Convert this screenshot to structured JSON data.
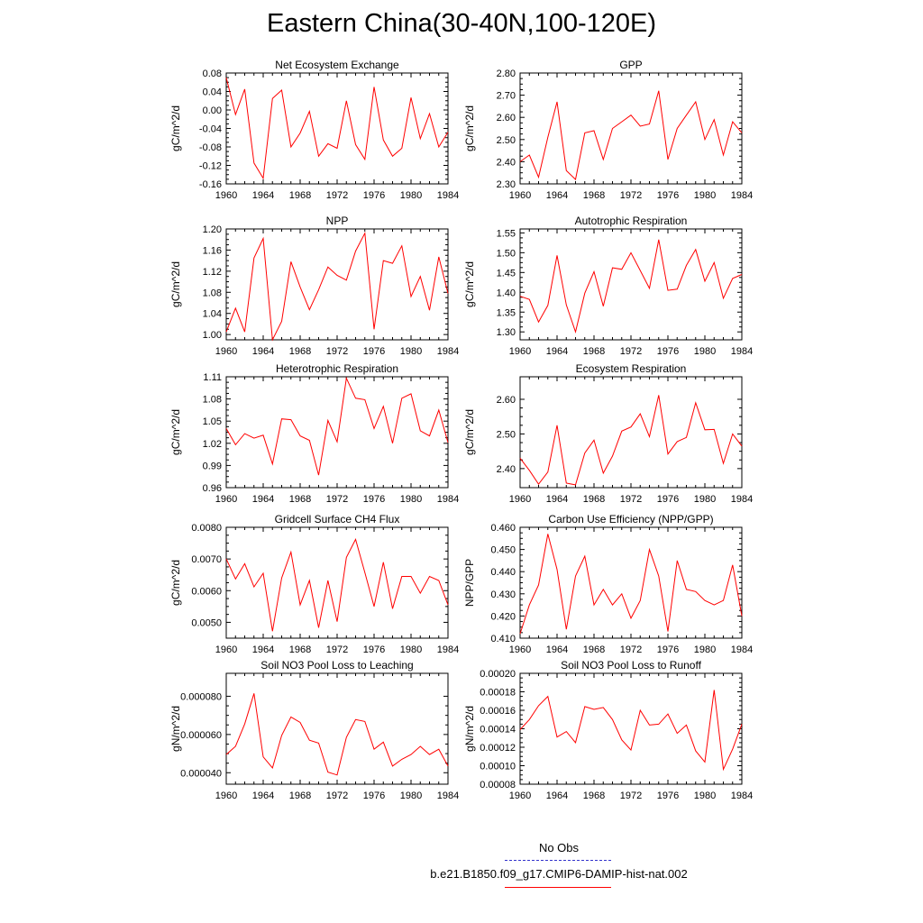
{
  "title": "Eastern China(30-40N,100-120E)",
  "legend": {
    "entries": [
      {
        "label": "No Obs",
        "color": "#3333cc",
        "style": "dashed"
      },
      {
        "label": "b.e21.B1850.f09_g17.CMIP6-DAMIP-hist-nat.002",
        "color": "#ff0000",
        "style": "solid"
      }
    ]
  },
  "chart_data": [
    {
      "type": "line",
      "title": "Net Ecosystem Exchange",
      "ylabel": "gC/m^2/d",
      "xlim": [
        1960,
        1984
      ],
      "ylim": [
        -0.16,
        0.08
      ],
      "xticks": [
        1960,
        1964,
        1968,
        1972,
        1976,
        1980,
        1984
      ],
      "yticks": [
        -0.16,
        -0.12,
        -0.08,
        -0.04,
        0.0,
        0.04,
        0.08
      ],
      "ytick_labels": [
        "-0.16",
        "-0.12",
        "-0.08",
        "-0.04",
        "0.00",
        "0.04",
        "0.08"
      ],
      "x": [
        1960,
        1961,
        1962,
        1963,
        1964,
        1965,
        1966,
        1967,
        1968,
        1969,
        1970,
        1971,
        1972,
        1973,
        1974,
        1975,
        1976,
        1977,
        1978,
        1979,
        1980,
        1981,
        1982,
        1983,
        1984
      ],
      "series": [
        {
          "color": "#ff0000",
          "values": [
            0.07,
            -0.01,
            0.045,
            -0.115,
            -0.148,
            0.025,
            0.043,
            -0.08,
            -0.05,
            -0.003,
            -0.1,
            -0.073,
            -0.083,
            0.02,
            -0.075,
            -0.107,
            0.05,
            -0.065,
            -0.1,
            -0.083,
            0.027,
            -0.062,
            -0.008,
            -0.08,
            -0.048
          ]
        }
      ]
    },
    {
      "type": "line",
      "title": "GPP",
      "ylabel": "gC/m^2/d",
      "xlim": [
        1960,
        1984
      ],
      "ylim": [
        2.3,
        2.8
      ],
      "xticks": [
        1960,
        1964,
        1968,
        1972,
        1976,
        1980,
        1984
      ],
      "yticks": [
        2.3,
        2.4,
        2.5,
        2.6,
        2.7,
        2.8
      ],
      "ytick_labels": [
        "2.30",
        "2.40",
        "2.50",
        "2.60",
        "2.70",
        "2.80"
      ],
      "x": [
        1960,
        1961,
        1962,
        1963,
        1964,
        1965,
        1966,
        1967,
        1968,
        1969,
        1970,
        1971,
        1972,
        1973,
        1974,
        1975,
        1976,
        1977,
        1978,
        1979,
        1980,
        1981,
        1982,
        1983,
        1984
      ],
      "series": [
        {
          "color": "#ff0000",
          "values": [
            2.4,
            2.43,
            2.33,
            2.51,
            2.67,
            2.36,
            2.32,
            2.53,
            2.54,
            2.41,
            2.55,
            2.58,
            2.61,
            2.56,
            2.57,
            2.72,
            2.41,
            2.55,
            2.61,
            2.67,
            2.5,
            2.59,
            2.43,
            2.58,
            2.53
          ]
        }
      ]
    },
    {
      "type": "line",
      "title": "NPP",
      "ylabel": "gC/m^2/d",
      "xlim": [
        1960,
        1984
      ],
      "ylim": [
        0.99,
        1.2
      ],
      "xticks": [
        1960,
        1964,
        1968,
        1972,
        1976,
        1980,
        1984
      ],
      "yticks": [
        1.0,
        1.04,
        1.08,
        1.12,
        1.16,
        1.2
      ],
      "ytick_labels": [
        "1.00",
        "1.04",
        "1.08",
        "1.12",
        "1.16",
        "1.20"
      ],
      "x": [
        1960,
        1961,
        1962,
        1963,
        1964,
        1965,
        1966,
        1967,
        1968,
        1969,
        1970,
        1971,
        1972,
        1973,
        1974,
        1975,
        1976,
        1977,
        1978,
        1979,
        1980,
        1981,
        1982,
        1983,
        1984
      ],
      "series": [
        {
          "color": "#ff0000",
          "values": [
            1.005,
            1.05,
            1.005,
            1.145,
            1.182,
            0.99,
            1.025,
            1.138,
            1.09,
            1.047,
            1.085,
            1.128,
            1.112,
            1.103,
            1.158,
            1.192,
            1.01,
            1.14,
            1.135,
            1.168,
            1.072,
            1.11,
            1.046,
            1.147,
            1.078
          ]
        }
      ]
    },
    {
      "type": "line",
      "title": "Autotrophic Respiration",
      "ylabel": "gC/m^2/d",
      "xlim": [
        1960,
        1984
      ],
      "ylim": [
        1.28,
        1.56
      ],
      "xticks": [
        1960,
        1964,
        1968,
        1972,
        1976,
        1980,
        1984
      ],
      "yticks": [
        1.3,
        1.35,
        1.4,
        1.45,
        1.5,
        1.55
      ],
      "ytick_labels": [
        "1.30",
        "1.35",
        "1.40",
        "1.45",
        "1.50",
        "1.55"
      ],
      "x": [
        1960,
        1961,
        1962,
        1963,
        1964,
        1965,
        1966,
        1967,
        1968,
        1969,
        1970,
        1971,
        1972,
        1973,
        1974,
        1975,
        1976,
        1977,
        1978,
        1979,
        1980,
        1981,
        1982,
        1983,
        1984
      ],
      "series": [
        {
          "color": "#ff0000",
          "values": [
            1.39,
            1.382,
            1.325,
            1.367,
            1.493,
            1.368,
            1.3,
            1.398,
            1.452,
            1.365,
            1.462,
            1.458,
            1.5,
            1.455,
            1.41,
            1.533,
            1.405,
            1.408,
            1.468,
            1.508,
            1.428,
            1.475,
            1.385,
            1.435,
            1.445
          ]
        }
      ]
    },
    {
      "type": "line",
      "title": "Heterotrophic Respiration",
      "ylabel": "gC/m^2/d",
      "xlim": [
        1960,
        1984
      ],
      "ylim": [
        0.96,
        1.11
      ],
      "xticks": [
        1960,
        1964,
        1968,
        1972,
        1976,
        1980,
        1984
      ],
      "yticks": [
        0.96,
        0.99,
        1.02,
        1.05,
        1.08,
        1.11
      ],
      "ytick_labels": [
        "0.96",
        "0.99",
        "1.02",
        "1.05",
        "1.08",
        "1.11"
      ],
      "x": [
        1960,
        1961,
        1962,
        1963,
        1964,
        1965,
        1966,
        1967,
        1968,
        1969,
        1970,
        1971,
        1972,
        1973,
        1974,
        1975,
        1976,
        1977,
        1978,
        1979,
        1980,
        1981,
        1982,
        1983,
        1984
      ],
      "series": [
        {
          "color": "#ff0000",
          "values": [
            1.04,
            1.018,
            1.033,
            1.027,
            1.031,
            0.992,
            1.053,
            1.052,
            1.03,
            1.024,
            0.977,
            1.051,
            1.022,
            1.108,
            1.081,
            1.079,
            1.04,
            1.07,
            1.02,
            1.081,
            1.087,
            1.037,
            1.03,
            1.065,
            1.021
          ]
        }
      ]
    },
    {
      "type": "line",
      "title": "Ecosystem Respiration",
      "ylabel": "gC/m^2/d",
      "xlim": [
        1960,
        1984
      ],
      "ylim": [
        2.345,
        2.665
      ],
      "xticks": [
        1960,
        1964,
        1968,
        1972,
        1976,
        1980,
        1984
      ],
      "yticks": [
        2.4,
        2.5,
        2.6
      ],
      "ytick_labels": [
        "2.40",
        "2.50",
        "2.60"
      ],
      "x": [
        1960,
        1961,
        1962,
        1963,
        1964,
        1965,
        1966,
        1967,
        1968,
        1969,
        1970,
        1971,
        1972,
        1973,
        1974,
        1975,
        1976,
        1977,
        1978,
        1979,
        1980,
        1981,
        1982,
        1983,
        1984
      ],
      "series": [
        {
          "color": "#ff0000",
          "values": [
            2.43,
            2.395,
            2.355,
            2.39,
            2.525,
            2.358,
            2.353,
            2.445,
            2.482,
            2.387,
            2.436,
            2.508,
            2.52,
            2.558,
            2.492,
            2.612,
            2.442,
            2.478,
            2.49,
            2.59,
            2.512,
            2.513,
            2.415,
            2.5,
            2.465
          ]
        }
      ]
    },
    {
      "type": "line",
      "title": "Gridcell Surface CH4 Flux",
      "ylabel": "gC/m^2/d",
      "xlim": [
        1960,
        1984
      ],
      "ylim": [
        0.0045,
        0.008
      ],
      "xticks": [
        1960,
        1964,
        1968,
        1972,
        1976,
        1980,
        1984
      ],
      "yticks": [
        0.005,
        0.006,
        0.007,
        0.008
      ],
      "ytick_labels": [
        "0.0050",
        "0.0060",
        "0.0070",
        "0.0080"
      ],
      "x": [
        1960,
        1961,
        1962,
        1963,
        1964,
        1965,
        1966,
        1967,
        1968,
        1969,
        1970,
        1971,
        1972,
        1973,
        1974,
        1975,
        1976,
        1977,
        1978,
        1979,
        1980,
        1981,
        1982,
        1983,
        1984
      ],
      "series": [
        {
          "color": "#ff0000",
          "values": [
            0.007,
            0.00637,
            0.00685,
            0.00612,
            0.00655,
            0.00472,
            0.0064,
            0.00722,
            0.00555,
            0.00632,
            0.00483,
            0.00632,
            0.00502,
            0.00705,
            0.00762,
            0.00657,
            0.0055,
            0.0069,
            0.00543,
            0.00645,
            0.00645,
            0.00592,
            0.00645,
            0.00632,
            0.00555
          ]
        }
      ]
    },
    {
      "type": "line",
      "title": "Carbon Use Efficiency (NPP/GPP)",
      "ylabel": "NPP/GPP",
      "xlim": [
        1960,
        1984
      ],
      "ylim": [
        0.41,
        0.46
      ],
      "xticks": [
        1960,
        1964,
        1968,
        1972,
        1976,
        1980,
        1984
      ],
      "yticks": [
        0.41,
        0.42,
        0.43,
        0.44,
        0.45,
        0.46
      ],
      "ytick_labels": [
        "0.410",
        "0.420",
        "0.430",
        "0.440",
        "0.450",
        "0.460"
      ],
      "x": [
        1960,
        1961,
        1962,
        1963,
        1964,
        1965,
        1966,
        1967,
        1968,
        1969,
        1970,
        1971,
        1972,
        1973,
        1974,
        1975,
        1976,
        1977,
        1978,
        1979,
        1980,
        1981,
        1982,
        1983,
        1984
      ],
      "series": [
        {
          "color": "#ff0000",
          "values": [
            0.412,
            0.425,
            0.434,
            0.457,
            0.441,
            0.414,
            0.438,
            0.447,
            0.425,
            0.432,
            0.425,
            0.43,
            0.419,
            0.427,
            0.45,
            0.438,
            0.413,
            0.445,
            0.432,
            0.431,
            0.427,
            0.425,
            0.427,
            0.443,
            0.42
          ]
        }
      ]
    },
    {
      "type": "line",
      "title": "Soil NO3 Pool Loss to Leaching",
      "ylabel": "gN/m^2/d",
      "xlim": [
        1960,
        1984
      ],
      "ylim": [
        3.4e-05,
        9.2e-05
      ],
      "xticks": [
        1960,
        1964,
        1968,
        1972,
        1976,
        1980,
        1984
      ],
      "yticks": [
        4e-05,
        6e-05,
        8e-05
      ],
      "ytick_labels": [
        "0.000040",
        "0.000060",
        "0.000080"
      ],
      "x": [
        1960,
        1961,
        1962,
        1963,
        1964,
        1965,
        1966,
        1967,
        1968,
        1969,
        1970,
        1971,
        1972,
        1973,
        1974,
        1975,
        1976,
        1977,
        1978,
        1979,
        1980,
        1981,
        1982,
        1983,
        1984
      ],
      "series": [
        {
          "color": "#ff0000",
          "values": [
            4.95e-05,
            5.38e-05,
            6.55e-05,
            8.15e-05,
            4.83e-05,
            4.25e-05,
            5.95e-05,
            6.92e-05,
            6.63e-05,
            5.7e-05,
            5.55e-05,
            4.03e-05,
            3.88e-05,
            5.85e-05,
            6.78e-05,
            6.68e-05,
            5.23e-05,
            5.6e-05,
            4.35e-05,
            4.7e-05,
            4.95e-05,
            5.38e-05,
            4.95e-05,
            5.23e-05,
            4.35e-05
          ]
        }
      ]
    },
    {
      "type": "line",
      "title": "Soil NO3 Pool Loss to Runoff",
      "ylabel": "gN/m^2/d",
      "xlim": [
        1960,
        1984
      ],
      "ylim": [
        8e-05,
        0.0002
      ],
      "xticks": [
        1960,
        1964,
        1968,
        1972,
        1976,
        1980,
        1984
      ],
      "yticks": [
        8e-05,
        0.0001,
        0.00012,
        0.00014,
        0.00016,
        0.00018,
        0.0002
      ],
      "ytick_labels": [
        "0.00008",
        "0.00010",
        "0.00012",
        "0.00014",
        "0.00016",
        "0.00018",
        "0.00020"
      ],
      "x": [
        1960,
        1961,
        1962,
        1963,
        1964,
        1965,
        1966,
        1967,
        1968,
        1969,
        1970,
        1971,
        1972,
        1973,
        1974,
        1975,
        1976,
        1977,
        1978,
        1979,
        1980,
        1981,
        1982,
        1983,
        1984
      ],
      "series": [
        {
          "color": "#ff0000",
          "values": [
            0.000139,
            0.00015,
            0.000165,
            0.000175,
            0.000131,
            0.000137,
            0.000125,
            0.000164,
            0.000161,
            0.000163,
            0.00015,
            0.000128,
            0.000117,
            0.00016,
            0.000144,
            0.000145,
            0.000156,
            0.000135,
            0.000144,
            0.000116,
            0.000104,
            0.000182,
            9.6e-05,
            0.000118,
            0.000145
          ]
        }
      ]
    }
  ]
}
